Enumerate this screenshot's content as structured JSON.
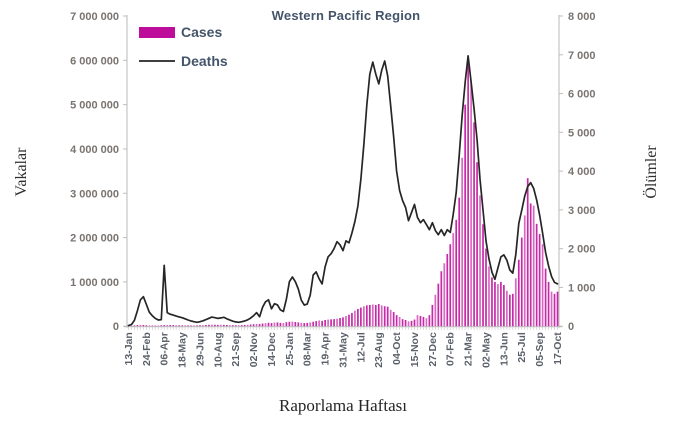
{
  "title": "Western Pacific Region",
  "legend": {
    "cases_label": "Cases",
    "deaths_label": "Deaths",
    "position": "top-left-inside"
  },
  "axes": {
    "left_title": "Vakalar",
    "right_title": "Ölümler",
    "x_title": "Raporlama Haftası",
    "left_tick_labels": [
      "0",
      "1 000 000",
      "2 000 000",
      "3 000 000",
      "4 000 000",
      "5 000 000",
      "6 000 000",
      "7 000 000"
    ],
    "right_tick_labels": [
      "0",
      "1 000",
      "2 000",
      "3 000",
      "4 000",
      "5 000",
      "6 000",
      "7 000",
      "8 000"
    ]
  },
  "colors": {
    "cases_bar": "#BE0D9B",
    "deaths_line": "#262626",
    "title_text": "#44546A",
    "axis_line": "#BFBFBF",
    "minor_tick": "#C9C9C9",
    "y_tick_text": "#7A7470",
    "x_tick_text": "#5A6069"
  },
  "chart_data": {
    "type": "combo-bar-line",
    "title": "Western Pacific Region",
    "xlabel": "Raporlama Haftası",
    "x_unit": "weekly reporting week, 13-Jan-2020 to 17-Oct-2022",
    "grid": false,
    "legend_position": "top-left inside plot",
    "x_tick_every": 6,
    "x_tick_labels": [
      "13-Jan",
      "24-Feb",
      "06-Apr",
      "18-May",
      "29-Jun",
      "10-Aug",
      "21-Sep",
      "02-Nov",
      "14-Dec",
      "25-Jan",
      "08-Mar",
      "19-Apr",
      "31-May",
      "12-Jul",
      "23-Aug",
      "04-Oct",
      "15-Nov",
      "27-Dec",
      "07-Feb",
      "21-Mar",
      "02-May",
      "13-Jun",
      "25-Jul",
      "05-Sep",
      "17-Oct"
    ],
    "left_axis": {
      "label": "Vakalar",
      "min": 0,
      "max": 7000000,
      "tick_step": 1000000
    },
    "right_axis": {
      "label": "Ölümler",
      "min": 0,
      "max": 8000,
      "tick_step": 1000
    },
    "series": [
      {
        "name": "Cases",
        "type": "bar",
        "axis": "left",
        "color": "#BE0D9B",
        "values": [
          5000,
          12000,
          18000,
          25000,
          30000,
          28000,
          22000,
          18000,
          15000,
          14000,
          16000,
          20000,
          25000,
          28000,
          26000,
          24000,
          22000,
          20000,
          19000,
          18000,
          17000,
          16000,
          17000,
          19000,
          22000,
          25000,
          28000,
          32000,
          35000,
          33000,
          30000,
          32000,
          30000,
          27000,
          24000,
          22000,
          21000,
          22000,
          24000,
          27000,
          32000,
          38000,
          45000,
          52000,
          48000,
          60000,
          70000,
          78000,
          70000,
          80000,
          85000,
          75000,
          70000,
          90000,
          100000,
          105000,
          95000,
          85000,
          75000,
          70000,
          75000,
          85000,
          100000,
          115000,
          130000,
          120000,
          140000,
          150000,
          155000,
          160000,
          170000,
          185000,
          200000,
          230000,
          260000,
          300000,
          350000,
          390000,
          420000,
          450000,
          470000,
          480000,
          490000,
          480000,
          500000,
          470000,
          450000,
          440000,
          370000,
          320000,
          250000,
          210000,
          160000,
          140000,
          110000,
          120000,
          150000,
          250000,
          230000,
          210000,
          180000,
          250000,
          480000,
          710000,
          960000,
          1240000,
          1420000,
          1630000,
          1850000,
          2100000,
          2400000,
          2900000,
          3800000,
          5000000,
          6000000,
          5500000,
          4600000,
          3700000,
          2950000,
          2300000,
          1750000,
          1350000,
          1100000,
          1000000,
          950000,
          1000000,
          930000,
          800000,
          710000,
          730000,
          1080000,
          1500000,
          2000000,
          2500000,
          3340000,
          2770000,
          2720000,
          2310000,
          2080000,
          1850000,
          1300000,
          1000000,
          780000,
          730000,
          780000
        ]
      },
      {
        "name": "Deaths",
        "type": "line",
        "axis": "right",
        "color": "#262626",
        "values": [
          15,
          45,
          150,
          400,
          680,
          760,
          560,
          360,
          270,
          200,
          160,
          170,
          1570,
          350,
          310,
          285,
          260,
          240,
          220,
          190,
          160,
          135,
          115,
          100,
          115,
          140,
          170,
          205,
          235,
          220,
          200,
          215,
          230,
          190,
          160,
          130,
          110,
          100,
          115,
          135,
          165,
          210,
          270,
          350,
          245,
          490,
          630,
          680,
          450,
          580,
          550,
          420,
          380,
          700,
          1150,
          1270,
          1150,
          960,
          670,
          545,
          570,
          800,
          1320,
          1400,
          1220,
          1090,
          1530,
          1790,
          1870,
          2000,
          2180,
          2100,
          1950,
          2200,
          2150,
          2400,
          2700,
          3100,
          3800,
          4700,
          5700,
          6500,
          6810,
          6500,
          6250,
          6600,
          6840,
          6450,
          5680,
          4900,
          4000,
          3500,
          3240,
          3060,
          2720,
          2930,
          3140,
          2800,
          2670,
          2750,
          2620,
          2490,
          2670,
          2465,
          2360,
          2490,
          2340,
          2490,
          2420,
          2880,
          3450,
          4400,
          5450,
          6300,
          6970,
          6300,
          5600,
          4800,
          3790,
          3000,
          2200,
          1730,
          1390,
          1210,
          1500,
          1790,
          1840,
          1700,
          1450,
          1370,
          1850,
          2650,
          3000,
          3350,
          3600,
          3700,
          3550,
          3250,
          2870,
          2400,
          1900,
          1550,
          1280,
          1130,
          1090
        ]
      }
    ]
  }
}
